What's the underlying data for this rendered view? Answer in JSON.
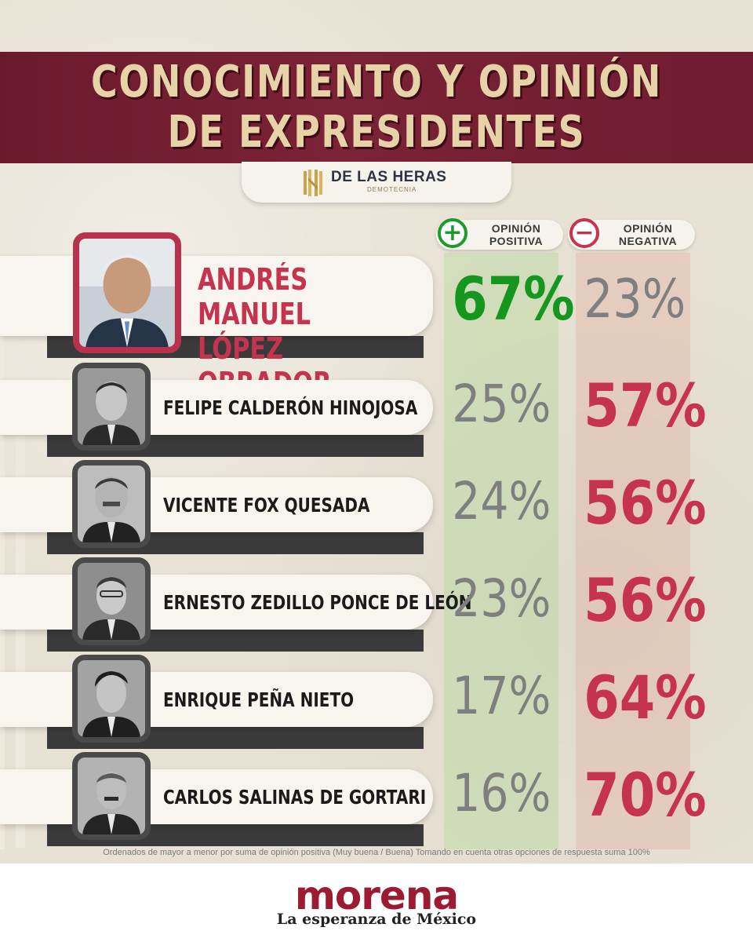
{
  "header": {
    "title_line1": "CONOCIMIENTO Y OPINIÓN",
    "title_line2": "DE EXPRESIDENTES",
    "source_name": "DE LAS HERAS",
    "source_sub": "DEMOTECNIA"
  },
  "columns": {
    "positive": {
      "icon": "plus-icon",
      "symbol": "+",
      "line1": "OPINIÓN",
      "line2": "POSITIVA",
      "color": "#1d9a2e"
    },
    "negative": {
      "icon": "minus-icon",
      "symbol": "−",
      "line1": "OPINIÓN",
      "line2": "NEGATIVA",
      "color": "#c5334f"
    }
  },
  "rows": [
    {
      "name_line1": "ANDRÉS MANUEL",
      "name_line2": "LÓPEZ OBRADOR",
      "positive": "67%",
      "negative": "23%"
    },
    {
      "name": "FELIPE CALDERÓN HINOJOSA",
      "positive": "25%",
      "negative": "57%"
    },
    {
      "name": "VICENTE FOX QUESADA",
      "positive": "24%",
      "negative": "56%"
    },
    {
      "name": "ERNESTO ZEDILLO PONCE DE LEÓN",
      "positive": "23%",
      "negative": "56%"
    },
    {
      "name": "ENRIQUE PEÑA NIETO",
      "positive": "17%",
      "negative": "64%"
    },
    {
      "name": "CARLOS SALINAS DE GORTARI",
      "positive": "16%",
      "negative": "70%"
    }
  ],
  "chart_data": {
    "type": "table",
    "title": "CONOCIMIENTO Y OPINIÓN DE EXPRESIDENTES",
    "categories": [
      "ANDRÉS MANUEL LÓPEZ OBRADOR",
      "FELIPE CALDERÓN HINOJOSA",
      "VICENTE FOX QUESADA",
      "ERNESTO ZEDILLO PONCE DE LEÓN",
      "ENRIQUE PEÑA NIETO",
      "CARLOS SALINAS DE GORTARI"
    ],
    "series": [
      {
        "name": "OPINIÓN POSITIVA",
        "values": [
          67,
          25,
          24,
          23,
          17,
          16
        ]
      },
      {
        "name": "OPINIÓN NEGATIVA",
        "values": [
          23,
          57,
          56,
          56,
          64,
          70
        ]
      }
    ],
    "colors": {
      "positive": "#1d9a2e",
      "negative": "#c5334f",
      "muted": "#7f7f7f"
    }
  },
  "footnote": "Ordenados de mayor a menor por suma de opinión positiva (Muy buena / Buena) Tomando en cuenta otras opciones de respuesta suma 100%",
  "footer": {
    "brand": "morena",
    "tagline": "La esperanza de México",
    "brand_color": "#9b1c32"
  }
}
